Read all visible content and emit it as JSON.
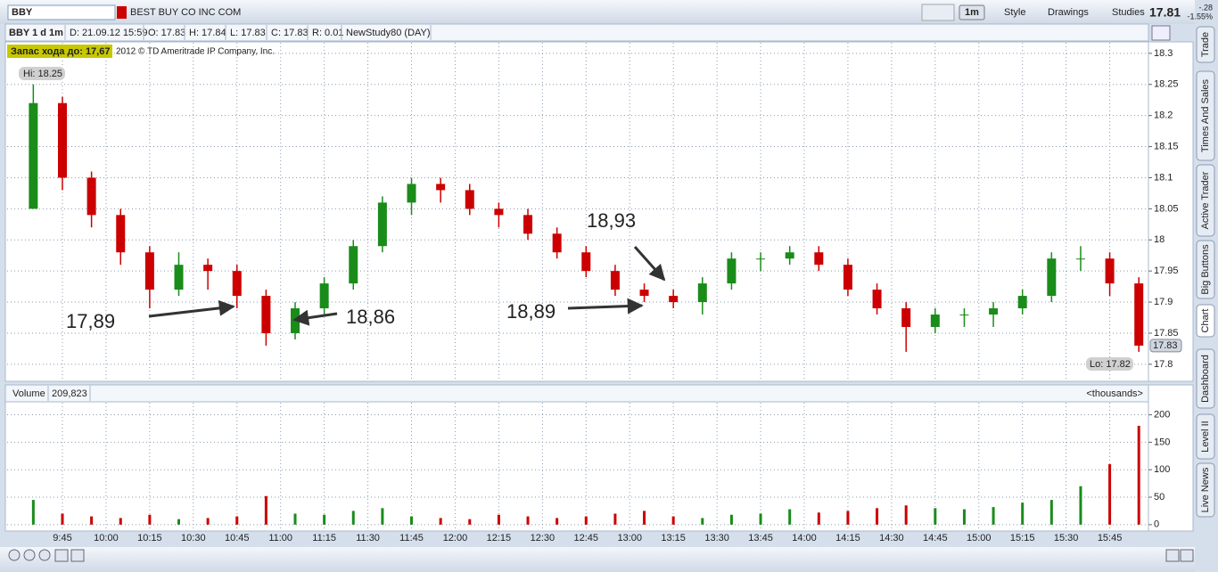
{
  "toolbar": {
    "symbol": "BBY",
    "company": "BEST BUY CO INC COM",
    "buttons": [
      "1m",
      "Style",
      "Drawings",
      "Studies"
    ],
    "last": "17.81",
    "change": "-.28",
    "change_pct": "-1.55%"
  },
  "info_bar": [
    "BBY 1 d 1m",
    "D: 21.09.12 15:59",
    "O: 17.83",
    "H: 17.84",
    "L: 17.83",
    "C: 17.83",
    "R: 0.01",
    "NewStudy80 (DAY)"
  ],
  "chart_data": {
    "type": "candlestick",
    "note": "Запас хода до: 17,67",
    "copyright": "2012 © TD Ameritrade IP Company, Inc.",
    "hi_label": "Hi: 18.25",
    "lo_label": "Lo: 17.82",
    "last_label": "17.83",
    "up_color": "#1a8c1a",
    "down_color": "#cc0000",
    "x": [
      575,
      585,
      595,
      605,
      615,
      625,
      635,
      645,
      655,
      665,
      675,
      685,
      695,
      705,
      715,
      725,
      735,
      745,
      755,
      765,
      775,
      785,
      795,
      805,
      815,
      825,
      835,
      845,
      855,
      865,
      875,
      885,
      895,
      905,
      915,
      925,
      935,
      945,
      955
    ],
    "open": [
      18.05,
      18.22,
      18.1,
      18.04,
      17.98,
      17.92,
      17.96,
      17.95,
      17.91,
      17.85,
      17.89,
      17.93,
      17.99,
      18.06,
      18.09,
      18.08,
      18.05,
      18.04,
      18.01,
      17.98,
      17.95,
      17.92,
      17.91,
      17.9,
      17.93,
      17.97,
      17.97,
      17.98,
      17.96,
      17.92,
      17.89,
      17.86,
      17.88,
      17.88,
      17.89,
      17.91,
      17.97,
      17.97,
      17.93
    ],
    "high": [
      18.25,
      18.23,
      18.11,
      18.05,
      17.99,
      17.98,
      17.97,
      17.96,
      17.92,
      17.9,
      17.94,
      18.0,
      18.07,
      18.1,
      18.1,
      18.09,
      18.06,
      18.05,
      18.02,
      17.99,
      17.96,
      17.93,
      17.92,
      17.94,
      17.98,
      17.98,
      17.99,
      17.99,
      17.97,
      17.93,
      17.9,
      17.89,
      17.89,
      17.9,
      17.92,
      17.98,
      17.99,
      17.98,
      17.94
    ],
    "low": [
      18.05,
      18.08,
      18.02,
      17.96,
      17.89,
      17.91,
      17.92,
      17.89,
      17.83,
      17.84,
      17.88,
      17.92,
      17.98,
      18.04,
      18.06,
      18.04,
      18.02,
      18.0,
      17.97,
      17.94,
      17.91,
      17.9,
      17.89,
      17.88,
      17.92,
      17.95,
      17.96,
      17.95,
      17.91,
      17.88,
      17.82,
      17.85,
      17.86,
      17.86,
      17.88,
      17.9,
      17.95,
      17.91,
      17.82
    ],
    "close": [
      18.22,
      18.1,
      18.04,
      17.98,
      17.92,
      17.96,
      17.95,
      17.91,
      17.85,
      17.89,
      17.93,
      17.99,
      18.06,
      18.09,
      18.08,
      18.05,
      18.04,
      18.01,
      17.98,
      17.95,
      17.92,
      17.91,
      17.9,
      17.93,
      17.97,
      17.97,
      17.98,
      17.96,
      17.92,
      17.89,
      17.86,
      17.88,
      17.88,
      17.89,
      17.91,
      17.97,
      17.97,
      17.93,
      17.83
    ],
    "xlim": [
      566,
      958
    ],
    "xticks": [
      {
        "value": 585,
        "label": "9:45"
      },
      {
        "value": 600,
        "label": "10:00"
      },
      {
        "value": 615,
        "label": "10:15"
      },
      {
        "value": 630,
        "label": "10:30"
      },
      {
        "value": 645,
        "label": "10:45"
      },
      {
        "value": 660,
        "label": "11:00"
      },
      {
        "value": 675,
        "label": "11:15"
      },
      {
        "value": 690,
        "label": "11:30"
      },
      {
        "value": 705,
        "label": "11:45"
      },
      {
        "value": 720,
        "label": "12:00"
      },
      {
        "value": 735,
        "label": "12:15"
      },
      {
        "value": 750,
        "label": "12:30"
      },
      {
        "value": 765,
        "label": "12:45"
      },
      {
        "value": 780,
        "label": "13:00"
      },
      {
        "value": 795,
        "label": "13:15"
      },
      {
        "value": 810,
        "label": "13:30"
      },
      {
        "value": 825,
        "label": "13:45"
      },
      {
        "value": 840,
        "label": "14:00"
      },
      {
        "value": 855,
        "label": "14:15"
      },
      {
        "value": 870,
        "label": "14:30"
      },
      {
        "value": 885,
        "label": "14:45"
      },
      {
        "value": 900,
        "label": "15:00"
      },
      {
        "value": 915,
        "label": "15:15"
      },
      {
        "value": 930,
        "label": "15:30"
      },
      {
        "value": 945,
        "label": "15:45"
      }
    ],
    "ylim": [
      17.774,
      18.317
    ],
    "yticks": [
      17.8,
      17.85,
      17.9,
      17.95,
      18,
      18.05,
      18.1,
      18.15,
      18.2,
      18.25,
      18.3
    ],
    "grid": true,
    "annotations": [
      {
        "text": "17,89",
        "color": "#cc0000"
      },
      {
        "text": "18,86",
        "color": "#1a8c1a"
      },
      {
        "text": "18,89",
        "color": "#cc0000"
      },
      {
        "text": "18,93",
        "color": "#1a8c1a"
      }
    ]
  },
  "volume_chart": {
    "title": "Volume",
    "total": "209,823",
    "unit_label": "<thousands>",
    "values": [
      45,
      20,
      15,
      12,
      18,
      10,
      12,
      15,
      52,
      20,
      18,
      25,
      30,
      15,
      12,
      10,
      18,
      15,
      12,
      15,
      20,
      25,
      15,
      12,
      18,
      20,
      28,
      22,
      25,
      30,
      35,
      30,
      28,
      32,
      40,
      45,
      70,
      110,
      180
    ],
    "ylim": [
      -10,
      222
    ],
    "yticks": [
      0,
      50,
      100,
      150,
      200
    ]
  },
  "side_tabs": [
    "Trade",
    "Times And Sales",
    "Active Trader",
    "Big Buttons",
    "Chart",
    "Dashboard",
    "Level II",
    "Live News"
  ]
}
